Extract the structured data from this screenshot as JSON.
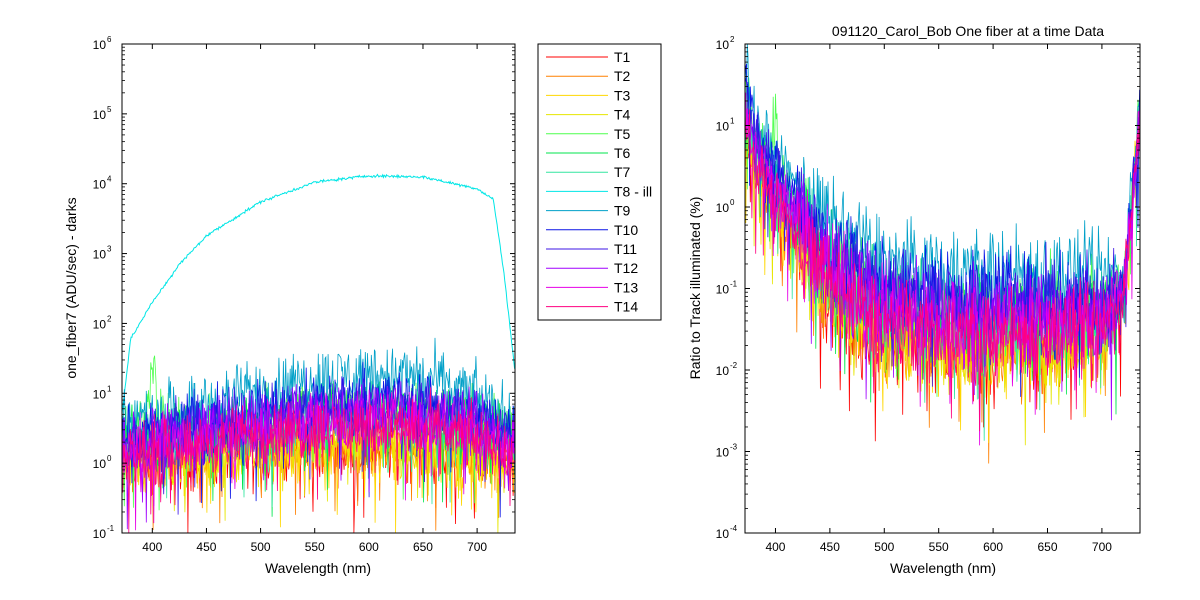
{
  "title": "091120_Carol_Bob  One fiber at a time Data",
  "legend": {
    "location": "outside-right of left plot",
    "entries": [
      "T1",
      "T2",
      "T3",
      "T4",
      "T5",
      "T6",
      "T7",
      "T8 - ill",
      "T9",
      "T10",
      "T11",
      "T12",
      "T13",
      "T14"
    ]
  },
  "series_colors": [
    "#ff0000",
    "#ff8000",
    "#ffd700",
    "#e6e600",
    "#4dff4d",
    "#00e64d",
    "#33e6a0",
    "#00e6e6",
    "#00a0c8",
    "#0a14e6",
    "#3c14e6",
    "#a000ff",
    "#e600e6",
    "#ff0080"
  ],
  "chart_data": [
    {
      "type": "line",
      "xlabel": "Wavelength (nm)",
      "ylabel": "one_fiber7  (ADU/sec) - darks",
      "xlim": [
        372,
        735
      ],
      "ylim": [
        0.1,
        1000000
      ],
      "yscale": "log",
      "xticks": [
        "400",
        "450",
        "500",
        "550",
        "600",
        "650",
        "700"
      ],
      "yticks": [
        {
          "base": "10",
          "exp": "-1"
        },
        {
          "base": "10",
          "exp": "0"
        },
        {
          "base": "10",
          "exp": "1"
        },
        {
          "base": "10",
          "exp": "2"
        },
        {
          "base": "10",
          "exp": "3"
        },
        {
          "base": "10",
          "exp": "4"
        },
        {
          "base": "10",
          "exp": "5"
        },
        {
          "base": "10",
          "exp": "6"
        }
      ],
      "grid": false,
      "series": [
        {
          "name": "T1",
          "wavelength": [
            372,
            400,
            450,
            500,
            550,
            600,
            650,
            700,
            735
          ],
          "values": [
            1.0,
            1.1,
            1.3,
            1.5,
            1.6,
            1.6,
            1.5,
            1.3,
            1.0
          ]
        },
        {
          "name": "T2",
          "wavelength": [
            372,
            400,
            450,
            500,
            550,
            600,
            650,
            700,
            735
          ],
          "values": [
            1.1,
            1.2,
            1.4,
            1.6,
            1.7,
            1.8,
            1.7,
            1.4,
            1.1
          ]
        },
        {
          "name": "T3",
          "wavelength": [
            372,
            400,
            450,
            500,
            550,
            600,
            650,
            700,
            735
          ],
          "values": [
            1.0,
            1.1,
            1.3,
            1.5,
            1.7,
            1.7,
            1.6,
            1.3,
            1.0
          ]
        },
        {
          "name": "T4",
          "wavelength": [
            372,
            400,
            450,
            500,
            550,
            600,
            650,
            700,
            735
          ],
          "values": [
            1.1,
            1.2,
            1.4,
            1.7,
            1.9,
            2.0,
            1.8,
            1.5,
            1.1
          ]
        },
        {
          "name": "T5",
          "wavelength": [
            372,
            395,
            400,
            405,
            450,
            500,
            550,
            600,
            650,
            700,
            735
          ],
          "values": [
            2.5,
            5,
            45,
            4,
            3.0,
            4.5,
            6.0,
            7.0,
            6.0,
            4.0,
            2.5
          ]
        },
        {
          "name": "T6",
          "wavelength": [
            372,
            400,
            450,
            500,
            550,
            600,
            650,
            700,
            735
          ],
          "values": [
            2.0,
            2.2,
            2.8,
            3.5,
            4.5,
            5.0,
            4.5,
            3.5,
            2.5
          ]
        },
        {
          "name": "T7",
          "wavelength": [
            372,
            400,
            450,
            500,
            550,
            600,
            650,
            700,
            735
          ],
          "values": [
            1.8,
            2.0,
            2.6,
            3.2,
            4.0,
            4.5,
            4.0,
            3.2,
            2.2
          ]
        },
        {
          "name": "T8 - ill",
          "wavelength": [
            372,
            380,
            400,
            425,
            450,
            500,
            550,
            600,
            650,
            700,
            715,
            725,
            735
          ],
          "values": [
            5,
            60,
            200,
            700,
            1800,
            5500,
            10500,
            13000,
            12500,
            8500,
            6000,
            500,
            20
          ]
        },
        {
          "name": "T9",
          "wavelength": [
            372,
            400,
            450,
            500,
            550,
            600,
            650,
            700,
            735
          ],
          "values": [
            4.0,
            5.0,
            7.0,
            11.0,
            16.0,
            20.0,
            17.0,
            9.0,
            4.0
          ]
        },
        {
          "name": "T10",
          "wavelength": [
            372,
            400,
            450,
            500,
            550,
            600,
            650,
            700,
            735
          ],
          "values": [
            2.5,
            3.0,
            4.0,
            5.5,
            7.5,
            9.0,
            8.0,
            5.0,
            2.8
          ]
        },
        {
          "name": "T11",
          "wavelength": [
            372,
            400,
            450,
            500,
            550,
            600,
            650,
            700,
            735
          ],
          "values": [
            2.0,
            2.5,
            3.2,
            4.5,
            6.0,
            7.0,
            6.0,
            4.0,
            2.2
          ]
        },
        {
          "name": "T12",
          "wavelength": [
            372,
            400,
            450,
            500,
            550,
            600,
            650,
            700,
            735
          ],
          "values": [
            1.8,
            2.2,
            2.8,
            3.8,
            5.0,
            5.5,
            5.0,
            3.5,
            2.0
          ]
        },
        {
          "name": "T13",
          "wavelength": [
            372,
            400,
            450,
            500,
            550,
            600,
            650,
            700,
            735
          ],
          "values": [
            1.5,
            1.8,
            2.3,
            3.0,
            3.8,
            4.2,
            3.8,
            2.8,
            1.6
          ]
        },
        {
          "name": "T14",
          "wavelength": [
            372,
            400,
            450,
            500,
            550,
            600,
            650,
            700,
            735
          ],
          "values": [
            1.2,
            1.5,
            1.9,
            2.5,
            3.0,
            3.3,
            3.0,
            2.3,
            1.3
          ]
        }
      ]
    },
    {
      "type": "line",
      "title": "091120_Carol_Bob  One fiber at a time Data",
      "xlabel": "Wavelength (nm)",
      "ylabel": "Ratio to Track illuminated (%)",
      "xlim": [
        372,
        735
      ],
      "ylim": [
        0.0001,
        100
      ],
      "yscale": "log",
      "xticks": [
        "400",
        "450",
        "500",
        "550",
        "600",
        "650",
        "700"
      ],
      "yticks": [
        {
          "base": "10",
          "exp": "-4"
        },
        {
          "base": "10",
          "exp": "-3"
        },
        {
          "base": "10",
          "exp": "-2"
        },
        {
          "base": "10",
          "exp": "-1"
        },
        {
          "base": "10",
          "exp": "0"
        },
        {
          "base": "10",
          "exp": "1"
        },
        {
          "base": "10",
          "exp": "2"
        }
      ],
      "grid": false,
      "series": [
        {
          "name": "T1",
          "wavelength": [
            372,
            380,
            400,
            450,
            500,
            550,
            600,
            650,
            700,
            720,
            735
          ],
          "values": [
            10,
            4,
            1.0,
            0.08,
            0.025,
            0.02,
            0.02,
            0.02,
            0.025,
            0.1,
            12
          ]
        },
        {
          "name": "T2",
          "wavelength": [
            372,
            380,
            400,
            450,
            500,
            550,
            600,
            650,
            700,
            720,
            735
          ],
          "values": [
            10,
            4,
            1.0,
            0.08,
            0.026,
            0.021,
            0.021,
            0.021,
            0.026,
            0.1,
            12
          ]
        },
        {
          "name": "T3",
          "wavelength": [
            372,
            380,
            400,
            450,
            500,
            550,
            600,
            650,
            700,
            720,
            735
          ],
          "values": [
            10,
            4,
            1.0,
            0.08,
            0.025,
            0.02,
            0.02,
            0.02,
            0.025,
            0.1,
            12
          ]
        },
        {
          "name": "T4",
          "wavelength": [
            372,
            380,
            400,
            450,
            500,
            550,
            600,
            650,
            700,
            720,
            735
          ],
          "values": [
            10,
            4,
            1.0,
            0.08,
            0.026,
            0.021,
            0.021,
            0.021,
            0.026,
            0.1,
            12
          ]
        },
        {
          "name": "T5",
          "wavelength": [
            372,
            380,
            395,
            400,
            405,
            450,
            500,
            550,
            600,
            650,
            700,
            720,
            735
          ],
          "values": [
            40,
            8,
            3,
            20,
            2,
            0.2,
            0.07,
            0.05,
            0.05,
            0.05,
            0.05,
            0.1,
            18
          ]
        },
        {
          "name": "T6",
          "wavelength": [
            372,
            380,
            400,
            450,
            500,
            550,
            600,
            650,
            700,
            720,
            735
          ],
          "values": [
            30,
            6,
            2.5,
            0.2,
            0.07,
            0.045,
            0.045,
            0.045,
            0.045,
            0.1,
            15
          ]
        },
        {
          "name": "T7",
          "wavelength": [
            372,
            380,
            400,
            450,
            500,
            550,
            600,
            650,
            700,
            720,
            735
          ],
          "values": [
            25,
            6,
            2,
            0.18,
            0.06,
            0.04,
            0.04,
            0.04,
            0.04,
            0.09,
            14
          ]
        },
        {
          "name": "T9",
          "wavelength": [
            372,
            380,
            400,
            450,
            500,
            550,
            600,
            650,
            700,
            720,
            735
          ],
          "values": [
            70,
            15,
            4,
            0.6,
            0.22,
            0.17,
            0.17,
            0.16,
            0.14,
            0.15,
            20
          ]
        },
        {
          "name": "T10",
          "wavelength": [
            372,
            380,
            400,
            450,
            500,
            550,
            600,
            650,
            700,
            720,
            735
          ],
          "values": [
            50,
            10,
            3,
            0.35,
            0.12,
            0.09,
            0.085,
            0.08,
            0.07,
            0.12,
            16
          ]
        },
        {
          "name": "T11",
          "wavelength": [
            372,
            380,
            400,
            450,
            500,
            550,
            600,
            650,
            700,
            720,
            735
          ],
          "values": [
            30,
            8,
            2.5,
            0.25,
            0.09,
            0.065,
            0.06,
            0.06,
            0.055,
            0.1,
            14
          ]
        },
        {
          "name": "T12",
          "wavelength": [
            372,
            380,
            400,
            450,
            500,
            550,
            600,
            650,
            700,
            720,
            735
          ],
          "values": [
            25,
            6,
            2,
            0.2,
            0.07,
            0.05,
            0.05,
            0.05,
            0.045,
            0.1,
            13
          ]
        },
        {
          "name": "T13",
          "wavelength": [
            372,
            380,
            400,
            450,
            500,
            550,
            600,
            650,
            700,
            720,
            735
          ],
          "values": [
            20,
            5,
            1.5,
            0.15,
            0.05,
            0.035,
            0.035,
            0.035,
            0.035,
            0.09,
            12
          ]
        },
        {
          "name": "T14",
          "wavelength": [
            372,
            380,
            400,
            450,
            500,
            550,
            600,
            650,
            700,
            720,
            735
          ],
          "values": [
            15,
            4,
            1.2,
            0.1,
            0.035,
            0.028,
            0.028,
            0.028,
            0.03,
            0.09,
            12
          ]
        }
      ]
    }
  ]
}
